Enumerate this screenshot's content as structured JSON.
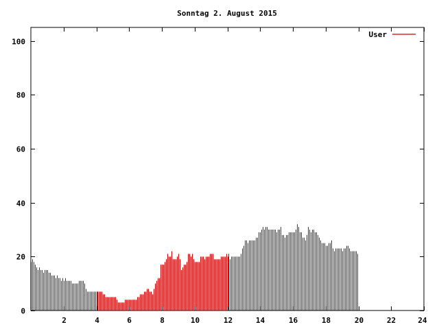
{
  "chart_data": {
    "type": "bar",
    "title": "Sonntag 2. August 2015",
    "xlabel": "",
    "ylabel": "",
    "xlim": [
      0,
      24
    ],
    "ylim": [
      0,
      105
    ],
    "x_ticks": [
      2,
      4,
      6,
      8,
      10,
      12,
      14,
      16,
      18,
      20,
      22,
      24
    ],
    "y_ticks": [
      0,
      20,
      40,
      60,
      80,
      100
    ],
    "grid": false,
    "legend_position": "top-right",
    "interval_minutes": 5,
    "series": [
      {
        "name": "User",
        "color": "#cc0000",
        "values": [
          18,
          19,
          18,
          17,
          16,
          15,
          16,
          15,
          15,
          14,
          15,
          15,
          15,
          14,
          14,
          13,
          13,
          13,
          12,
          13,
          12,
          12,
          11,
          12,
          11,
          12,
          11,
          11,
          11,
          11,
          10,
          10,
          10,
          10,
          10,
          11,
          11,
          11,
          11,
          10,
          8,
          7,
          7,
          7,
          7,
          7,
          7,
          7,
          7,
          7,
          7,
          7,
          7,
          6,
          6,
          5,
          5,
          5,
          5,
          5,
          5,
          5,
          5,
          4,
          3,
          3,
          3,
          3,
          3,
          4,
          4,
          4,
          4,
          4,
          4,
          4,
          4,
          4,
          5,
          5,
          6,
          6,
          6,
          7,
          7,
          8,
          8,
          7,
          7,
          6,
          8,
          10,
          11,
          12,
          12,
          17,
          17,
          17,
          18,
          19,
          21,
          20,
          20,
          22,
          19,
          19,
          19,
          20,
          21,
          19,
          15,
          16,
          17,
          17,
          18,
          21,
          21,
          20,
          21,
          19,
          18,
          18,
          18,
          18,
          20,
          20,
          20,
          19,
          20,
          20,
          20,
          21,
          21,
          21,
          19,
          19,
          19,
          19,
          19,
          20,
          20,
          20,
          20,
          21,
          20,
          21,
          19,
          20,
          20,
          20,
          20,
          20,
          20,
          20,
          21,
          23,
          24,
          26,
          26,
          25,
          26,
          26,
          26,
          26,
          26,
          27,
          27,
          29,
          29,
          30,
          31,
          30,
          31,
          31,
          30,
          30,
          30,
          30,
          30,
          30,
          29,
          30,
          30,
          31,
          28,
          28,
          27,
          28,
          28,
          29,
          29,
          29,
          29,
          29,
          30,
          32,
          31,
          29,
          29,
          27,
          27,
          26,
          28,
          31,
          30,
          29,
          30,
          30,
          29,
          29,
          28,
          27,
          26,
          25,
          25,
          25,
          24,
          24,
          25,
          25,
          26,
          23,
          22,
          23,
          23,
          23,
          23,
          23,
          22,
          23,
          23,
          24,
          24,
          23,
          22,
          22,
          22,
          22,
          22,
          21
        ]
      }
    ]
  }
}
